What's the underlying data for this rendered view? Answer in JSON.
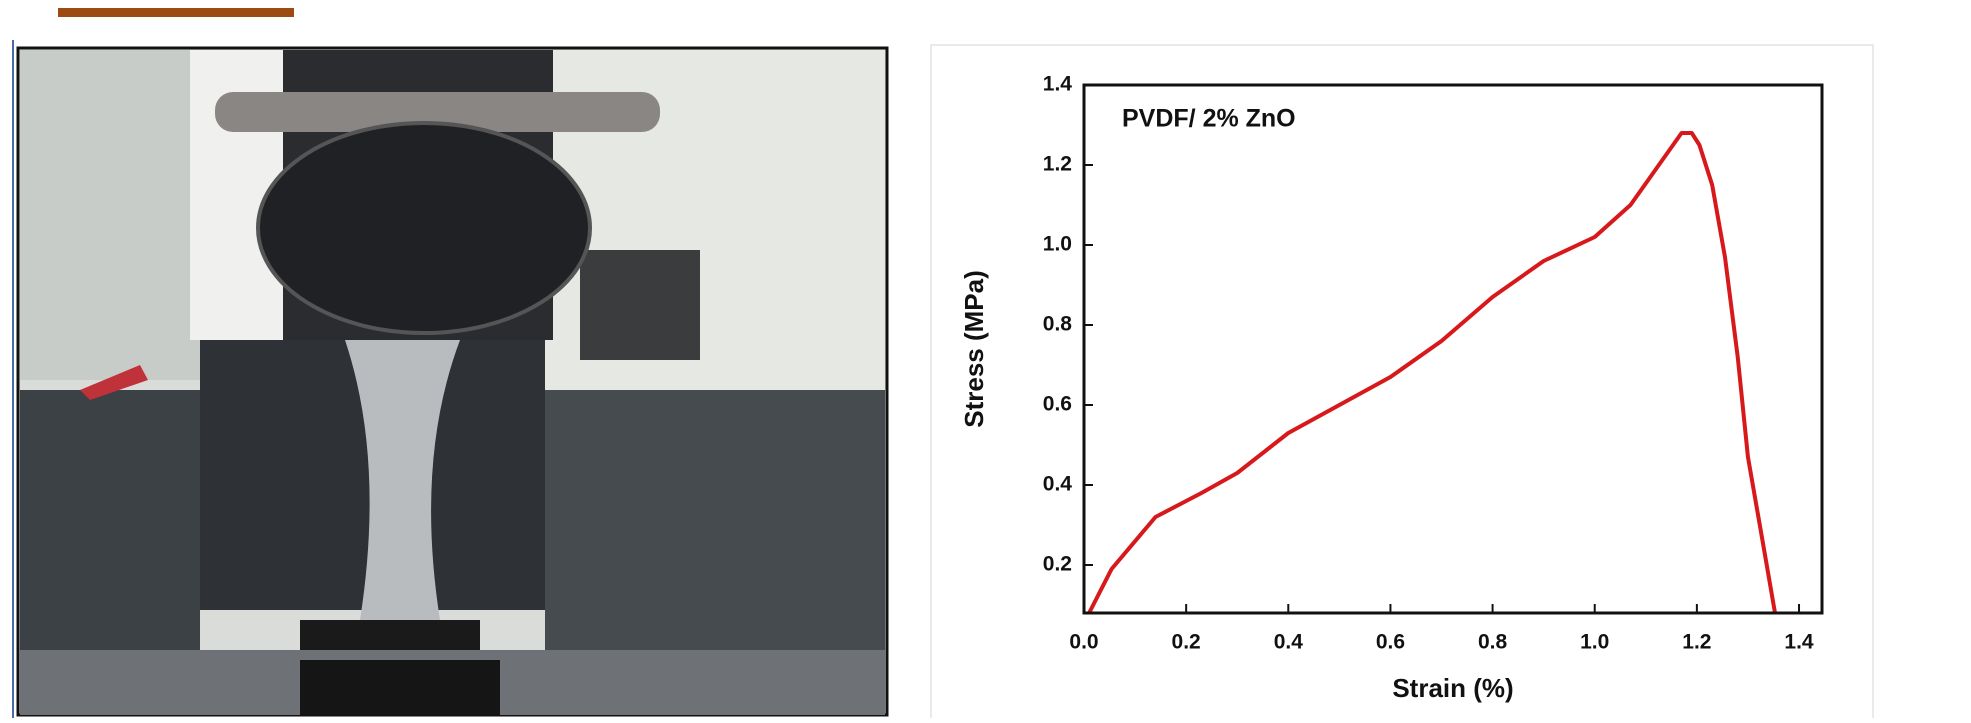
{
  "chart_data": {
    "type": "line",
    "annotation": "PVDF/ 2% ZnO",
    "x_label": "Strain (%)",
    "y_label": "Stress (MPa)",
    "xlim": [
      0,
      1.445
    ],
    "ylim": [
      0.08,
      1.4
    ],
    "xticks": [
      {
        "value": 0,
        "label": "0.0"
      },
      0.2,
      0.4,
      0.6,
      0.8,
      {
        "value": 1,
        "label": "1.0"
      },
      1.2,
      1.4
    ],
    "yticks": [
      0.2,
      0.4,
      0.6,
      0.8,
      {
        "value": 1,
        "label": "1.0"
      },
      1.2,
      1.4
    ],
    "series": [
      {
        "color": "#d7191c",
        "x": [
          0.01,
          0.054,
          0.14,
          0.23,
          0.3,
          0.4,
          0.5,
          0.6,
          0.7,
          0.8,
          0.9,
          1.0,
          1.07,
          1.12,
          1.17,
          1.19,
          1.205,
          1.23,
          1.255,
          1.28,
          1.3,
          1.33,
          1.353
        ],
        "values": [
          0.08,
          0.19,
          0.32,
          0.38,
          0.43,
          0.53,
          0.6,
          0.67,
          0.76,
          0.87,
          0.96,
          1.02,
          1.1,
          1.19,
          1.28,
          1.28,
          1.25,
          1.15,
          0.97,
          0.72,
          0.47,
          0.25,
          0.08
        ]
      }
    ]
  }
}
